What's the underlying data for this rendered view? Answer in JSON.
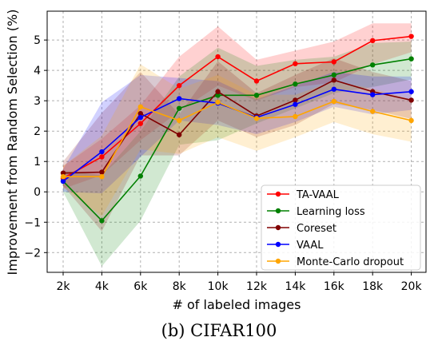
{
  "chart_data": {
    "type": "line",
    "title": "",
    "xlabel": "# of labeled images",
    "ylabel": "Improvement from Random Selection (%)",
    "caption": "(b) CIFAR100",
    "categories": [
      "2k",
      "4k",
      "6k",
      "8k",
      "10k",
      "12k",
      "14k",
      "16k",
      "18k",
      "20k"
    ],
    "ylim": [
      -2.65,
      5.95
    ],
    "yticks": [
      -2,
      -1,
      0,
      1,
      2,
      3,
      4,
      5
    ],
    "ytick_labels": [
      "−2",
      "−1",
      "0",
      "1",
      "2",
      "3",
      "4",
      "5"
    ],
    "grid": true,
    "legend_position": "lower-right",
    "series": [
      {
        "name": "TA-VAAL",
        "color": "#ff0000",
        "values": [
          0.45,
          1.15,
          2.25,
          3.5,
          4.45,
          3.65,
          4.22,
          4.28,
          4.98,
          5.12
        ],
        "lower": [
          0.1,
          0.55,
          1.7,
          2.65,
          3.5,
          3.0,
          3.45,
          3.6,
          4.2,
          4.6
        ],
        "upper": [
          0.85,
          1.75,
          2.85,
          4.45,
          5.45,
          4.35,
          4.65,
          4.95,
          5.55,
          5.55
        ]
      },
      {
        "name": "Learning loss",
        "color": "#008000",
        "values": [
          0.35,
          -0.95,
          0.52,
          2.75,
          3.18,
          3.18,
          3.55,
          3.85,
          4.18,
          4.38
        ],
        "lower": [
          0.0,
          -2.45,
          -0.95,
          1.55,
          1.7,
          2.25,
          2.75,
          3.25,
          3.45,
          3.7
        ],
        "upper": [
          0.7,
          0.55,
          2.0,
          3.8,
          4.75,
          4.15,
          4.35,
          4.45,
          4.9,
          4.95
        ]
      },
      {
        "name": "Coreset",
        "color": "#800000",
        "values": [
          0.62,
          0.65,
          2.58,
          1.88,
          3.3,
          2.5,
          3.02,
          3.68,
          3.3,
          3.02
        ],
        "lower": [
          0.2,
          -1.3,
          1.2,
          1.2,
          2.35,
          1.8,
          2.2,
          2.9,
          2.7,
          2.4
        ],
        "upper": [
          1.0,
          2.6,
          3.95,
          2.55,
          4.3,
          3.25,
          3.85,
          4.4,
          3.95,
          3.65
        ]
      },
      {
        "name": "VAAL",
        "color": "#0000ff",
        "values": [
          0.35,
          1.32,
          2.45,
          3.07,
          2.92,
          2.45,
          2.88,
          3.38,
          3.2,
          3.3
        ],
        "lower": [
          0.0,
          -0.05,
          1.15,
          2.35,
          2.2,
          1.9,
          2.3,
          2.8,
          2.55,
          2.7
        ],
        "upper": [
          0.75,
          2.95,
          3.85,
          3.75,
          3.65,
          3.05,
          3.5,
          3.95,
          3.8,
          3.8
        ]
      },
      {
        "name": "Monte-Carlo dropout",
        "color": "#ffa500",
        "values": [
          0.5,
          0.5,
          2.8,
          2.35,
          2.95,
          2.42,
          2.48,
          2.98,
          2.65,
          2.35
        ],
        "lower": [
          0.15,
          -0.8,
          1.4,
          1.25,
          1.8,
          1.35,
          1.8,
          2.3,
          1.9,
          1.65
        ],
        "upper": [
          0.85,
          1.85,
          4.2,
          3.4,
          3.85,
          3.2,
          3.2,
          3.65,
          3.4,
          3.05
        ]
      }
    ]
  }
}
